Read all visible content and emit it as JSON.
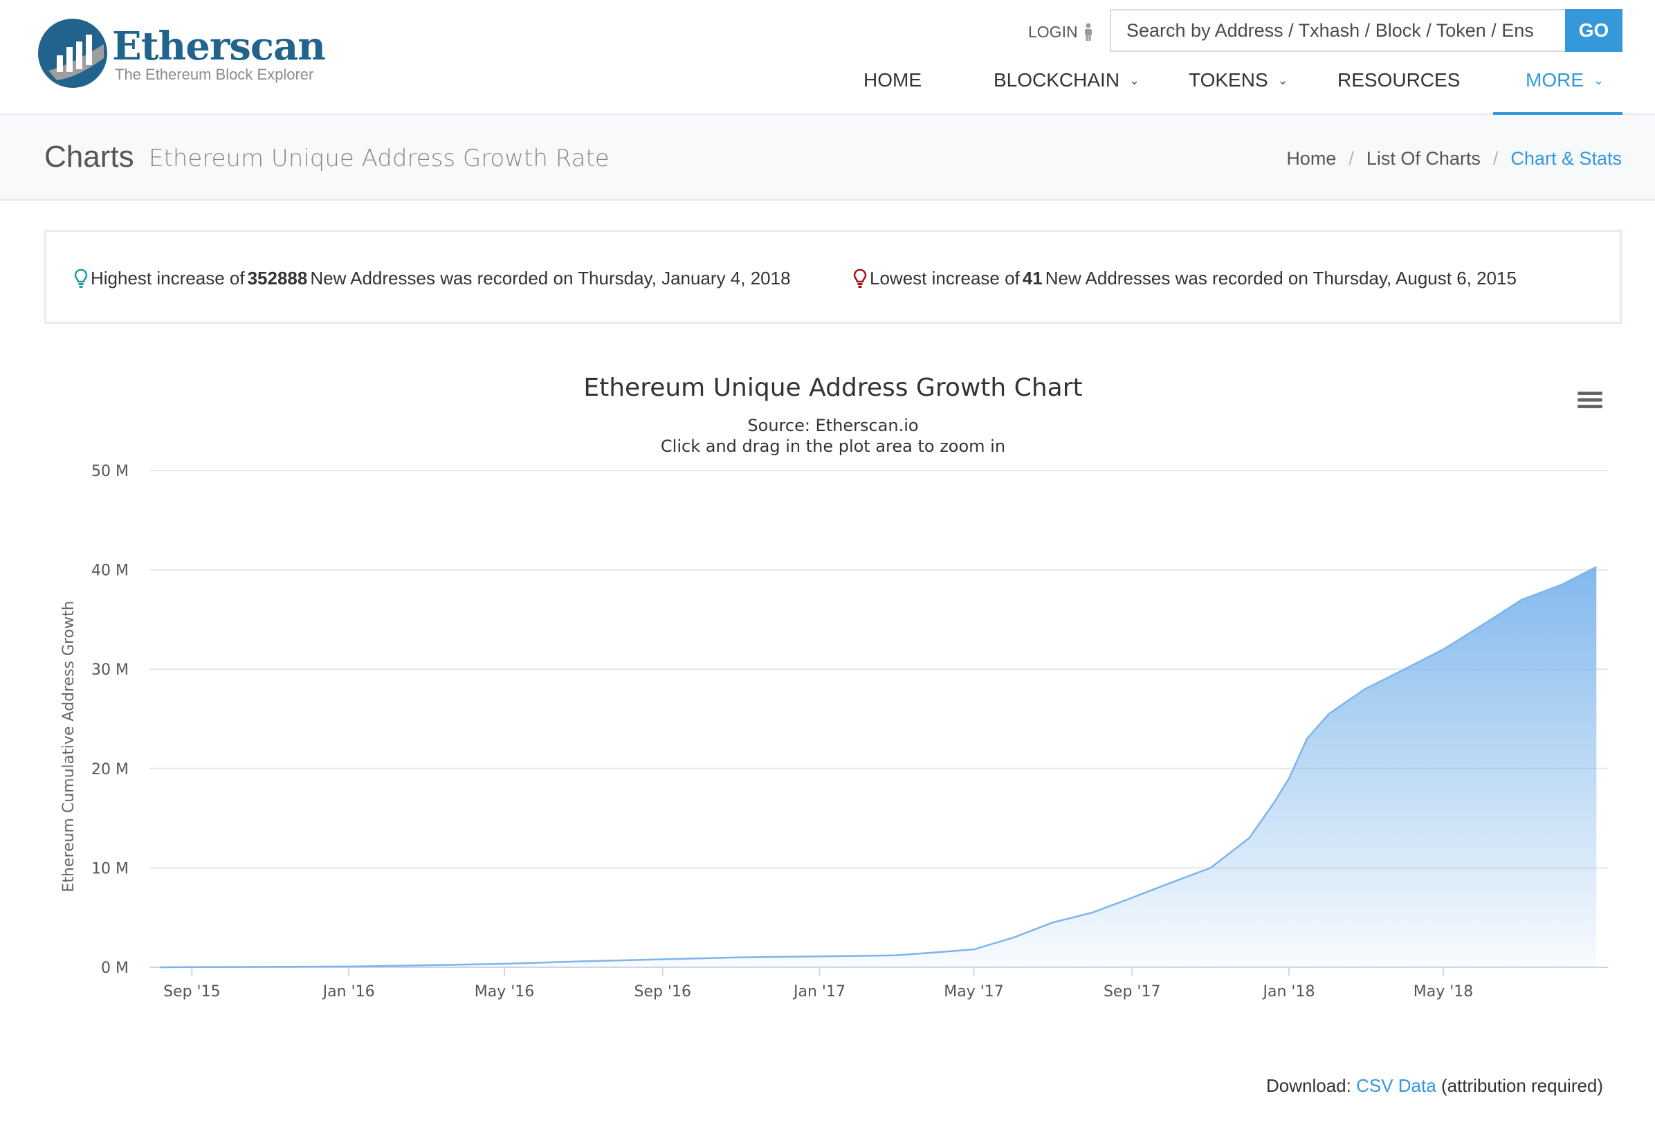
{
  "brand": {
    "name": "Etherscan",
    "tagline": "The Ethereum Block Explorer"
  },
  "header": {
    "login_label": "LOGIN",
    "search_placeholder": "Search by Address / Txhash / Block / Token / Ens",
    "go_label": "GO",
    "nav": {
      "home": "HOME",
      "blockchain": "BLOCKCHAIN",
      "tokens": "TOKENS",
      "resources": "RESOURCES",
      "more": "MORE"
    },
    "active_nav": "MORE"
  },
  "page": {
    "title": "Charts",
    "subtitle": "Ethereum Unique Address Growth Rate",
    "breadcrumb": [
      "Home",
      "List Of Charts",
      "Chart & Stats"
    ]
  },
  "stats": {
    "highest": {
      "prefix": "Highest increase of",
      "value": "352888",
      "suffix": "New Addresses was recorded on Thursday, January 4, 2018"
    },
    "lowest": {
      "prefix": "Lowest increase of",
      "value": "41",
      "suffix": "New Addresses was recorded on Thursday, August 6, 2015"
    }
  },
  "chart_data": {
    "type": "area",
    "title": "Ethereum Unique Address Growth Chart",
    "subtitle": "Source: Etherscan.io",
    "hint": "Click and drag in the plot area to zoom in",
    "ylabel": "Ethereum Cumulative Address Growth",
    "xlabel": "",
    "ylim": [
      0,
      50
    ],
    "yunit": "M",
    "yticks": [
      "0 M",
      "10 M",
      "20 M",
      "30 M",
      "40 M",
      "50 M"
    ],
    "xlim": [
      "2015-07-30",
      "2018-09-06"
    ],
    "xticks": [
      {
        "label": "Sep '15",
        "date": "2015-09-01"
      },
      {
        "label": "Jan '16",
        "date": "2016-01-01"
      },
      {
        "label": "May '16",
        "date": "2016-05-01"
      },
      {
        "label": "Sep '16",
        "date": "2016-09-01"
      },
      {
        "label": "Jan '17",
        "date": "2017-01-01"
      },
      {
        "label": "May '17",
        "date": "2017-05-01"
      },
      {
        "label": "Sep '17",
        "date": "2017-09-01"
      },
      {
        "label": "Jan '18",
        "date": "2018-01-01"
      },
      {
        "label": "May '18",
        "date": "2018-05-01"
      }
    ],
    "grid": true,
    "legend": "none",
    "color": "#7cb5ec",
    "series": [
      {
        "points": [
          {
            "x": "2015-08-07",
            "y": 0.0
          },
          {
            "x": "2015-09-01",
            "y": 0.02
          },
          {
            "x": "2016-01-01",
            "y": 0.08
          },
          {
            "x": "2016-03-01",
            "y": 0.2
          },
          {
            "x": "2016-05-01",
            "y": 0.35
          },
          {
            "x": "2016-07-01",
            "y": 0.6
          },
          {
            "x": "2016-09-01",
            "y": 0.8
          },
          {
            "x": "2016-11-01",
            "y": 1.0
          },
          {
            "x": "2017-01-01",
            "y": 1.1
          },
          {
            "x": "2017-03-01",
            "y": 1.2
          },
          {
            "x": "2017-04-01",
            "y": 1.5
          },
          {
            "x": "2017-05-01",
            "y": 1.8
          },
          {
            "x": "2017-06-01",
            "y": 3.0
          },
          {
            "x": "2017-07-01",
            "y": 4.5
          },
          {
            "x": "2017-08-01",
            "y": 5.5
          },
          {
            "x": "2017-09-01",
            "y": 7.0
          },
          {
            "x": "2017-10-01",
            "y": 8.5
          },
          {
            "x": "2017-11-01",
            "y": 10.0
          },
          {
            "x": "2017-12-01",
            "y": 13.0
          },
          {
            "x": "2017-12-20",
            "y": 16.5
          },
          {
            "x": "2018-01-01",
            "y": 19.0
          },
          {
            "x": "2018-01-15",
            "y": 23.0
          },
          {
            "x": "2018-02-01",
            "y": 25.5
          },
          {
            "x": "2018-03-01",
            "y": 28.0
          },
          {
            "x": "2018-04-01",
            "y": 30.0
          },
          {
            "x": "2018-05-01",
            "y": 32.0
          },
          {
            "x": "2018-06-01",
            "y": 34.5
          },
          {
            "x": "2018-07-01",
            "y": 37.0
          },
          {
            "x": "2018-08-01",
            "y": 38.5
          },
          {
            "x": "2018-08-28",
            "y": 40.3
          }
        ]
      }
    ]
  },
  "download": {
    "prefix": "Download:",
    "link": "CSV Data",
    "suffix": "(attribution required)"
  }
}
